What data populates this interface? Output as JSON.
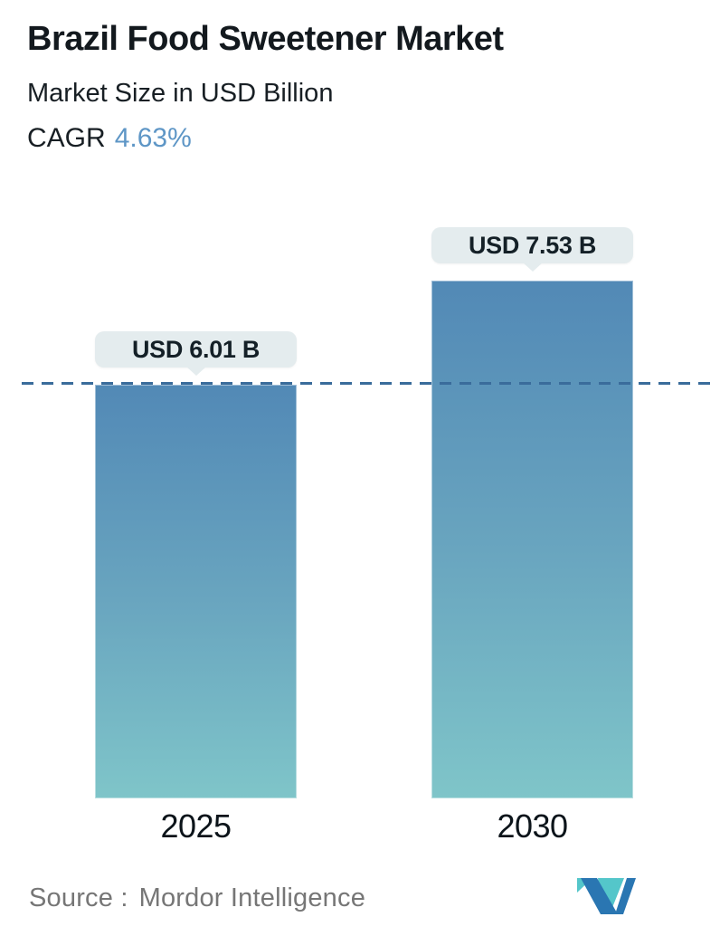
{
  "header": {
    "title": "Brazil Food Sweetener Market",
    "subtitle": "Market Size in USD Billion",
    "cagr_label": "CAGR",
    "cagr_value": "4.63%"
  },
  "chart_data": {
    "type": "bar",
    "title": "Brazil Food Sweetener Market",
    "subtitle": "Market Size in USD Billion",
    "unit": "USD Billion",
    "cagr_percent": 4.63,
    "categories": [
      "2025",
      "2030"
    ],
    "values": [
      6.01,
      7.53
    ],
    "bar_labels": [
      "USD 6.01 B",
      "USD 7.53 B"
    ],
    "reference_line_value": 6.01,
    "reference_line_style": "dashed",
    "ylim": [
      0,
      7.53
    ],
    "grid": "off",
    "legend": "none",
    "colors": {
      "bar_gradient_top": "#5289b6",
      "bar_gradient_bottom": "#7fc5c9",
      "dashed_line": "#3a6c9b",
      "tooltip_bg": "#e4ecee",
      "cagr_accent": "#5e96c6",
      "logo_blue": "#2a76b2",
      "logo_teal": "#54c6ca"
    }
  },
  "footer": {
    "source_label": "Source :",
    "source_value": "Mordor Intelligence",
    "logo_name": "mordor-intelligence-logo"
  }
}
